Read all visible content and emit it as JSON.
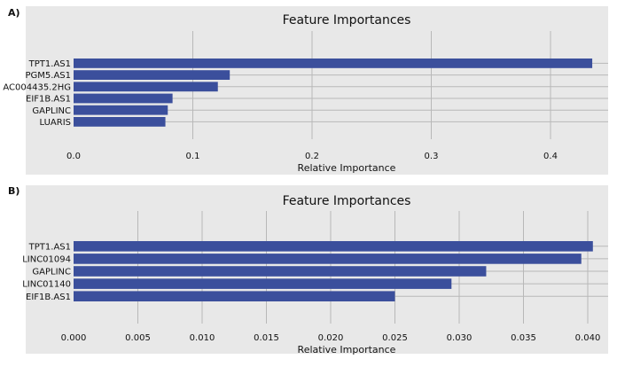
{
  "figure": {
    "panel_labels": [
      "A)",
      "B)"
    ]
  },
  "colors": {
    "background": "#e8e8e8",
    "grid": "#b8b8b8",
    "bar": "#3b4f9c",
    "text": "#111111"
  },
  "chart_data": [
    {
      "type": "bar",
      "orientation": "horizontal",
      "panel": "A)",
      "title": "Feature Importances",
      "xlabel": "Relative Importance",
      "ylabel": "",
      "categories": [
        "TPT1.AS1",
        "PGM5.AS1",
        "AC004435.2HG",
        "EIF1B.AS1",
        "GAPLINC",
        "LUARIS"
      ],
      "values": [
        0.435,
        0.131,
        0.121,
        0.083,
        0.079,
        0.077
      ],
      "xlim": [
        0.0,
        0.45
      ],
      "xticks": [
        0.0,
        0.1,
        0.2,
        0.3,
        0.4
      ],
      "xtick_labels": [
        "0.0",
        "0.1",
        "0.2",
        "0.3",
        "0.4"
      ],
      "grid": true,
      "legend": "none"
    },
    {
      "type": "bar",
      "orientation": "horizontal",
      "panel": "B)",
      "title": "Feature Importances",
      "xlabel": "Relative Importance",
      "ylabel": "",
      "categories": [
        "TPT1.AS1",
        "LINC01094",
        "GAPLINC",
        "LINC01140",
        "EIF1B.AS1"
      ],
      "values": [
        0.0404,
        0.0395,
        0.0321,
        0.0294,
        0.025
      ],
      "xlim": [
        0.0,
        0.0415
      ],
      "xticks": [
        0.0,
        0.005,
        0.01,
        0.015,
        0.02,
        0.025,
        0.03,
        0.035,
        0.04
      ],
      "xtick_labels": [
        "0.000",
        "0.005",
        "0.010",
        "0.015",
        "0.020",
        "0.025",
        "0.030",
        "0.035",
        "0.040"
      ],
      "grid": true,
      "legend": "none"
    }
  ]
}
